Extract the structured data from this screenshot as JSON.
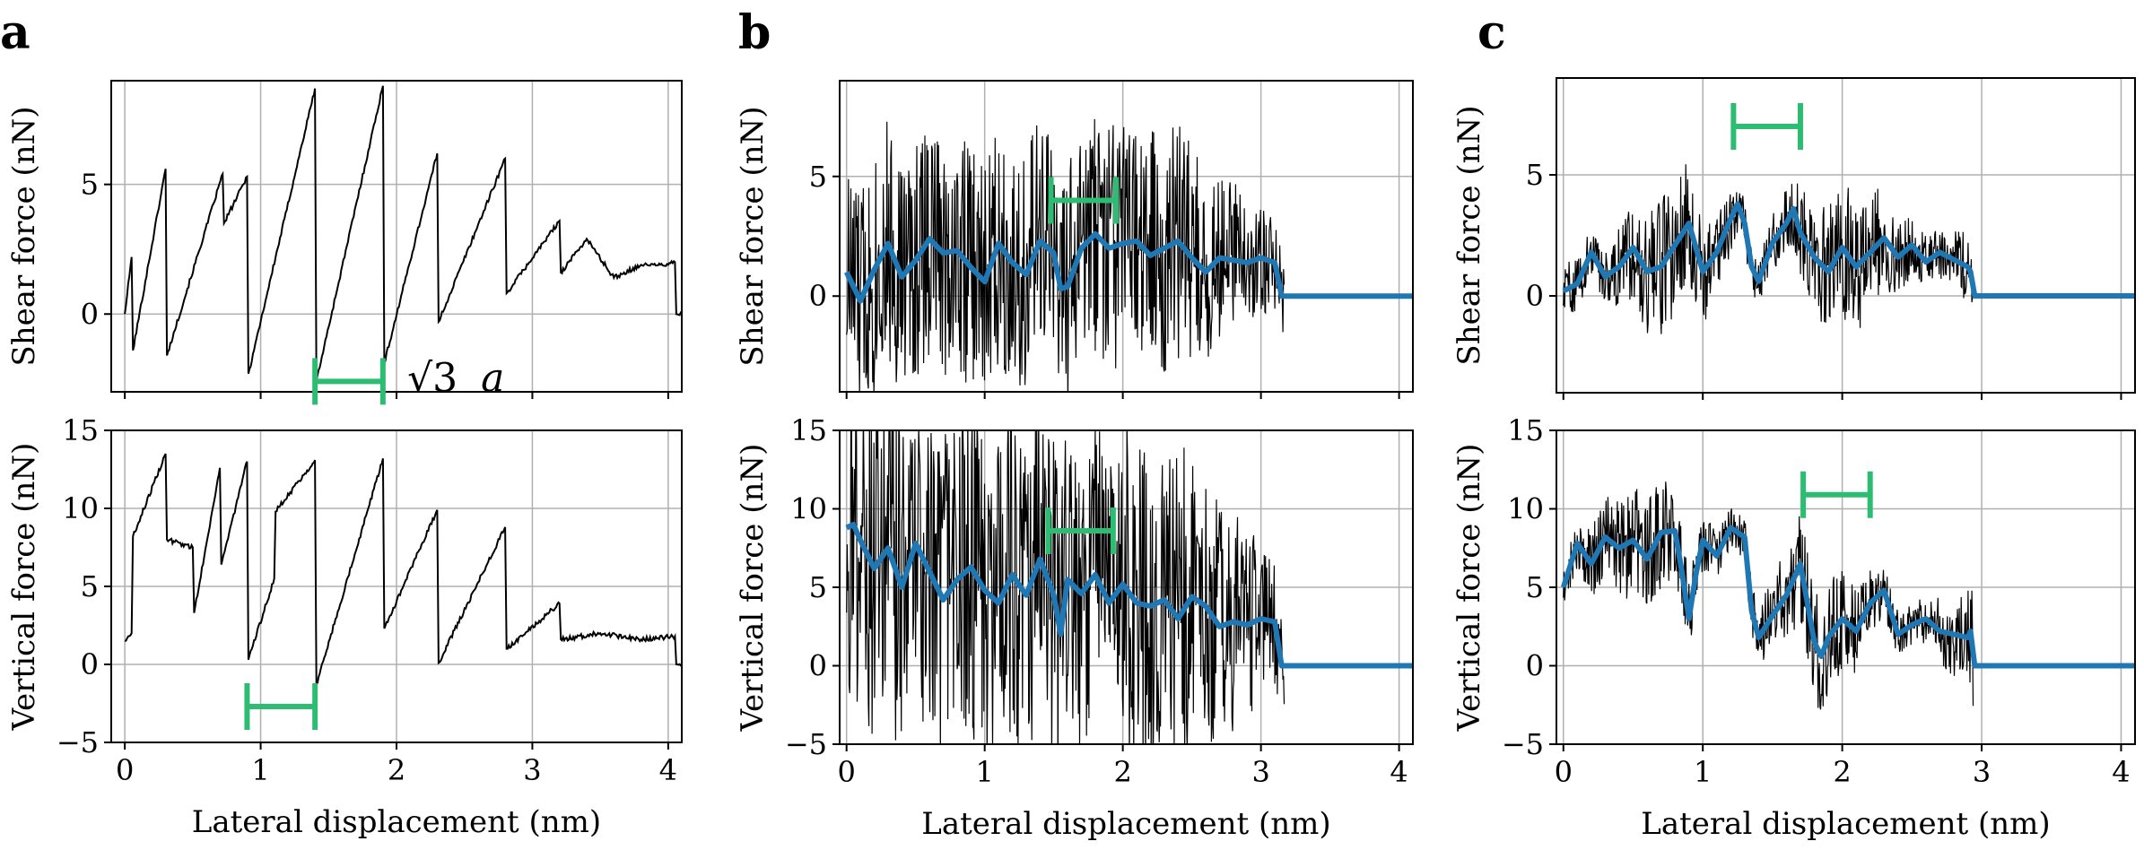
{
  "figure": {
    "colors": {
      "raw": "#000000",
      "smooth": "#1f77b4",
      "bar": "#2dbd72",
      "grid": "#b0b0b0"
    }
  },
  "chart_data": [
    {
      "panel": "a",
      "position": "top",
      "type": "line",
      "xlabel": "",
      "ylabel": "Shear force (nN)",
      "xlim": [
        -0.1,
        4.1
      ],
      "ylim": [
        -3,
        9
      ],
      "xticks": [
        0,
        1,
        2,
        3,
        4
      ],
      "xticklabels": [
        "",
        "",
        "",
        "",
        ""
      ],
      "yticks": [
        0,
        5
      ],
      "yticklabels": [
        "0",
        "5"
      ],
      "annotation": {
        "text": "√3 a",
        "x": 2.08,
        "y": -2.5
      },
      "bracket": {
        "x0": 1.4,
        "x1": 1.9,
        "y": -2.6
      },
      "series": [
        {
          "name": "raw",
          "color": "#000000",
          "x": [
            0,
            0.05,
            0.06,
            0.3,
            0.31,
            0.72,
            0.73,
            0.9,
            0.91,
            1.4,
            1.41,
            1.9,
            1.91,
            2.3,
            2.31,
            2.8,
            2.81,
            3.2,
            3.21,
            3.4,
            3.6,
            3.8,
            4.0,
            4.05,
            4.06,
            4.1
          ],
          "y": [
            0,
            2.2,
            -1.4,
            5.6,
            -1.6,
            5.4,
            3.5,
            5.3,
            -2.3,
            8.7,
            -2.6,
            8.8,
            -1.9,
            6.2,
            -0.3,
            6.0,
            0.8,
            3.6,
            1.6,
            2.9,
            1.4,
            1.9,
            1.9,
            2.0,
            0,
            0
          ]
        }
      ]
    },
    {
      "panel": "a",
      "position": "bottom",
      "type": "line",
      "xlabel": "Lateral displacement (nm)",
      "ylabel": "Vertical force (nN)",
      "xlim": [
        -0.1,
        4.1
      ],
      "ylim": [
        -5,
        15
      ],
      "xticks": [
        0,
        1,
        2,
        3,
        4
      ],
      "xticklabels": [
        "0",
        "1",
        "2",
        "3",
        "4"
      ],
      "yticks": [
        -5,
        0,
        5,
        10,
        15
      ],
      "yticklabels": [
        "−5",
        "0",
        "5",
        "10",
        "15"
      ],
      "bracket": {
        "x0": 0.9,
        "x1": 1.4,
        "y": -2.7
      },
      "series": [
        {
          "name": "raw",
          "color": "#000000",
          "x": [
            0,
            0.05,
            0.06,
            0.3,
            0.31,
            0.5,
            0.51,
            0.7,
            0.71,
            0.9,
            0.91,
            1.1,
            1.11,
            1.4,
            1.41,
            1.9,
            1.91,
            2.3,
            2.31,
            2.8,
            2.81,
            3.2,
            3.21,
            3.5,
            3.8,
            4.05,
            4.06,
            4.1
          ],
          "y": [
            1.5,
            2.0,
            8.2,
            13.5,
            8.0,
            7.5,
            3.3,
            12.6,
            6.4,
            13.0,
            0.3,
            5.5,
            9.8,
            13.1,
            -1.3,
            13.2,
            2.3,
            9.9,
            0.1,
            8.8,
            1.0,
            3.9,
            1.6,
            2.0,
            1.6,
            1.8,
            0,
            0
          ]
        }
      ]
    },
    {
      "panel": "b",
      "position": "top",
      "type": "line",
      "xlabel": "",
      "ylabel": "Shear force (nN)",
      "xlim": [
        -0.05,
        4.1
      ],
      "ylim": [
        -4,
        9
      ],
      "xticks": [
        0,
        1,
        2,
        3,
        4
      ],
      "xticklabels": [
        "",
        "",
        "",
        "",
        ""
      ],
      "yticks": [
        0,
        5
      ],
      "yticklabels": [
        "0",
        "5"
      ],
      "bracket": {
        "x0": 1.48,
        "x1": 1.95,
        "y": 4.0
      },
      "series": [
        {
          "name": "smoothed",
          "color": "#1f77b4",
          "x": [
            0,
            0.1,
            0.2,
            0.3,
            0.4,
            0.5,
            0.6,
            0.7,
            0.8,
            0.9,
            1.0,
            1.1,
            1.2,
            1.3,
            1.4,
            1.5,
            1.55,
            1.6,
            1.7,
            1.8,
            1.9,
            2.0,
            2.1,
            2.2,
            2.3,
            2.4,
            2.5,
            2.6,
            2.7,
            2.8,
            2.9,
            3.0,
            3.1,
            3.15,
            3.2,
            4.1
          ],
          "y": [
            1.0,
            -0.2,
            1.1,
            2.2,
            0.8,
            1.5,
            2.4,
            1.8,
            1.9,
            1.2,
            0.6,
            2.2,
            1.4,
            0.9,
            2.3,
            1.8,
            0.3,
            0.4,
            2.0,
            2.6,
            2.0,
            2.2,
            2.3,
            1.7,
            2.0,
            2.3,
            1.6,
            1.0,
            1.6,
            1.5,
            1.4,
            1.6,
            1.4,
            0.0,
            0.0,
            0.0
          ]
        }
      ]
    },
    {
      "panel": "b",
      "position": "bottom",
      "type": "line",
      "xlabel": "Lateral displacement (nm)",
      "ylabel": "Vertical force (nN)",
      "xlim": [
        -0.05,
        4.1
      ],
      "ylim": [
        -5,
        15
      ],
      "xticks": [
        0,
        1,
        2,
        3,
        4
      ],
      "xticklabels": [
        "0",
        "1",
        "2",
        "3",
        "4"
      ],
      "yticks": [
        -5,
        0,
        5,
        10,
        15
      ],
      "yticklabels": [
        "−5",
        "0",
        "5",
        "10",
        "15"
      ],
      "bracket": {
        "x0": 1.46,
        "x1": 1.93,
        "y": 8.6
      },
      "series": [
        {
          "name": "smoothed",
          "color": "#1f77b4",
          "x": [
            0,
            0.05,
            0.1,
            0.2,
            0.3,
            0.4,
            0.5,
            0.6,
            0.7,
            0.8,
            0.9,
            1.0,
            1.1,
            1.2,
            1.3,
            1.4,
            1.5,
            1.55,
            1.6,
            1.7,
            1.8,
            1.9,
            2.0,
            2.1,
            2.2,
            2.3,
            2.4,
            2.5,
            2.6,
            2.7,
            2.8,
            2.9,
            3.0,
            3.1,
            3.15,
            3.2,
            4.1
          ],
          "y": [
            8.8,
            9.0,
            8.0,
            6.2,
            7.5,
            5.0,
            7.8,
            6.0,
            4.2,
            5.5,
            6.3,
            4.8,
            4.0,
            5.8,
            4.5,
            6.8,
            4.5,
            2.0,
            5.5,
            4.6,
            5.8,
            4.0,
            5.2,
            4.0,
            3.8,
            4.2,
            3.0,
            4.4,
            3.8,
            2.5,
            2.8,
            2.6,
            3.0,
            2.8,
            0.0,
            0.0,
            0.0
          ]
        }
      ]
    },
    {
      "panel": "c",
      "position": "top",
      "type": "line",
      "xlabel": "",
      "ylabel": "Shear force (nN)",
      "xlim": [
        -0.05,
        4.1
      ],
      "ylim": [
        -4,
        9
      ],
      "xticks": [
        0,
        1,
        2,
        3,
        4
      ],
      "xticklabels": [
        "",
        "",
        "",
        "",
        ""
      ],
      "yticks": [
        0,
        5
      ],
      "yticklabels": [
        "0",
        "5"
      ],
      "bracket": {
        "x0": 1.22,
        "x1": 1.7,
        "y": 7.0
      },
      "series": [
        {
          "name": "smoothed",
          "color": "#1f77b4",
          "x": [
            0,
            0.1,
            0.2,
            0.3,
            0.4,
            0.5,
            0.6,
            0.7,
            0.8,
            0.9,
            1.0,
            1.1,
            1.2,
            1.25,
            1.3,
            1.35,
            1.4,
            1.5,
            1.6,
            1.65,
            1.7,
            1.8,
            1.9,
            2.0,
            2.1,
            2.2,
            2.3,
            2.4,
            2.5,
            2.6,
            2.7,
            2.8,
            2.9,
            2.92,
            2.95,
            4.1
          ],
          "y": [
            0.2,
            0.5,
            1.8,
            0.8,
            1.2,
            2.0,
            1.0,
            1.2,
            2.1,
            3.0,
            1.0,
            1.8,
            3.2,
            3.8,
            3.0,
            1.2,
            0.6,
            2.2,
            3.0,
            3.6,
            2.6,
            1.6,
            1.0,
            2.0,
            1.2,
            1.8,
            2.4,
            1.6,
            2.1,
            1.4,
            1.8,
            1.5,
            1.2,
            1.0,
            0.0,
            0.0
          ]
        }
      ]
    },
    {
      "panel": "c",
      "position": "bottom",
      "type": "line",
      "xlabel": "Lateral displacement (nm)",
      "ylabel": "Vertical force (nN)",
      "xlim": [
        -0.05,
        4.1
      ],
      "ylim": [
        -5,
        15
      ],
      "xticks": [
        0,
        1,
        2,
        3,
        4
      ],
      "xticklabels": [
        "0",
        "1",
        "2",
        "3",
        "4"
      ],
      "yticks": [
        -5,
        0,
        5,
        10,
        15
      ],
      "yticklabels": [
        "−5",
        "0",
        "5",
        "10",
        "15"
      ],
      "bracket": {
        "x0": 1.72,
        "x1": 2.2,
        "y": 10.9
      },
      "series": [
        {
          "name": "smoothed",
          "color": "#1f77b4",
          "x": [
            0,
            0.1,
            0.2,
            0.3,
            0.4,
            0.5,
            0.6,
            0.7,
            0.8,
            0.85,
            0.9,
            0.95,
            1.0,
            1.1,
            1.2,
            1.3,
            1.35,
            1.4,
            1.5,
            1.6,
            1.7,
            1.8,
            1.85,
            1.9,
            2.0,
            2.1,
            2.2,
            2.3,
            2.4,
            2.5,
            2.6,
            2.7,
            2.8,
            2.9,
            2.92,
            2.95,
            4.1
          ],
          "y": [
            5.0,
            7.8,
            6.5,
            8.2,
            7.5,
            8.0,
            6.8,
            8.5,
            8.6,
            6.0,
            3.0,
            5.8,
            8.0,
            7.0,
            8.8,
            8.2,
            3.5,
            1.8,
            3.2,
            4.5,
            6.5,
            1.5,
            0.6,
            1.8,
            3.0,
            2.2,
            4.0,
            4.8,
            2.0,
            2.6,
            3.0,
            2.2,
            2.0,
            1.8,
            2.2,
            0.0,
            0.0
          ]
        }
      ]
    }
  ],
  "texts": {
    "panel_a": "a",
    "panel_b": "b",
    "panel_c": "c",
    "annotation_sqrt": "√3",
    "annotation_a": "a",
    "xlabel": "Lateral displacement (nm)",
    "ylabel_shear": "Shear force (nN)",
    "ylabel_vertical": "Vertical force (nN)"
  }
}
